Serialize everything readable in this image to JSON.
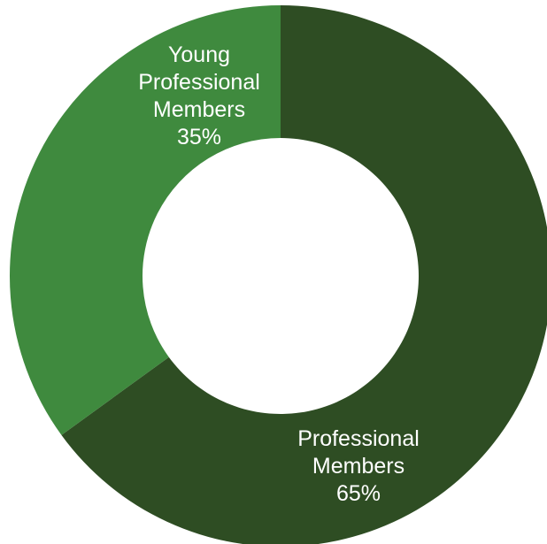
{
  "chart_data": {
    "type": "pie",
    "donut": true,
    "title": "",
    "legend": "none",
    "slices": [
      {
        "category": "Professional Members",
        "label_lines": [
          "Professional",
          "Members"
        ],
        "value": 65,
        "value_label": "65%",
        "color": "#2e4d23"
      },
      {
        "category": "Young Professional Members",
        "label_lines": [
          "Young",
          "Professional",
          "Members"
        ],
        "value": 35,
        "value_label": "35%",
        "color": "#3f8a3e"
      }
    ]
  }
}
